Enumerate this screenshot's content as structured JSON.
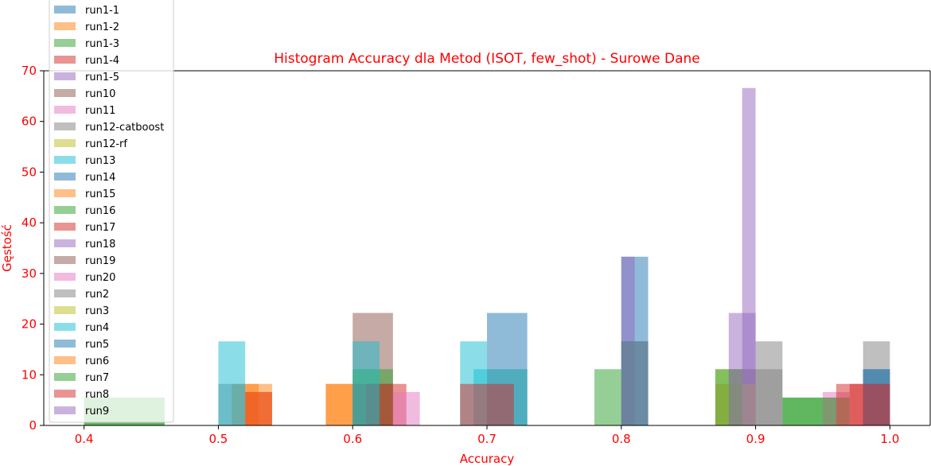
{
  "chart_data": {
    "type": "bar",
    "title": "Histogram Accuracy dla Metod (ISOT, few_shot) - Surowe Dane",
    "xlabel": "Accuracy",
    "ylabel": "Gęstość",
    "xlim": [
      0.37,
      1.03
    ],
    "ylim": [
      0,
      70
    ],
    "xticks": [
      "0.4",
      "0.5",
      "0.6",
      "0.7",
      "0.8",
      "0.9",
      "1.0"
    ],
    "yticks": [
      "0",
      "10",
      "20",
      "30",
      "40",
      "50",
      "60",
      "70"
    ],
    "grid": false,
    "legend_position": "upper-left",
    "bar_opacity": 0.5,
    "series": [
      {
        "name": "run1-1",
        "color": "#1f77b4",
        "bars": [
          {
            "x0": 0.7,
            "x1": 0.73,
            "y": 22.2
          },
          {
            "x0": 0.8,
            "x1": 0.82,
            "y": 33.3
          },
          {
            "x0": 0.98,
            "x1": 1.0,
            "y": 11.1
          }
        ]
      },
      {
        "name": "run1-2",
        "color": "#ff7f0e",
        "bars": [
          {
            "x0": 0.51,
            "x1": 0.53,
            "y": 8.2
          },
          {
            "x0": 0.58,
            "x1": 0.6,
            "y": 8.2
          },
          {
            "x0": 0.87,
            "x1": 0.88,
            "y": 8.2
          }
        ]
      },
      {
        "name": "run1-3",
        "color": "#2ca02c",
        "bars": [
          {
            "x0": 0.78,
            "x1": 0.8,
            "y": 11.1
          },
          {
            "x0": 0.92,
            "x1": 0.95,
            "y": 5.5
          }
        ]
      },
      {
        "name": "run1-4",
        "color": "#d62728",
        "bars": [
          {
            "x0": 0.52,
            "x1": 0.54,
            "y": 6.6
          },
          {
            "x0": 0.62,
            "x1": 0.64,
            "y": 8.2
          },
          {
            "x0": 0.97,
            "x1": 1.0,
            "y": 8.2
          }
        ]
      },
      {
        "name": "run1-5",
        "color": "#9467bd",
        "bars": [
          {
            "x0": 0.88,
            "x1": 0.9,
            "y": 22.2
          },
          {
            "x0": 0.8,
            "x1": 0.81,
            "y": 33.3
          }
        ]
      },
      {
        "name": "run10",
        "color": "#8c564b",
        "bars": [
          {
            "x0": 0.6,
            "x1": 0.63,
            "y": 22.2
          },
          {
            "x0": 0.95,
            "x1": 0.96,
            "y": 5.5
          }
        ]
      },
      {
        "name": "run11",
        "color": "#e377c2",
        "bars": [
          {
            "x0": 0.95,
            "x1": 0.97,
            "y": 6.6
          }
        ]
      },
      {
        "name": "run12-catboost",
        "color": "#7f7f7f",
        "bars": [
          {
            "x0": 0.5,
            "x1": 0.52,
            "y": 8.2
          },
          {
            "x0": 0.9,
            "x1": 0.92,
            "y": 16.6
          },
          {
            "x0": 0.98,
            "x1": 1.0,
            "y": 16.6
          }
        ]
      },
      {
        "name": "run12-rf",
        "color": "#bcbd22",
        "bars": [
          {
            "x0": 0.87,
            "x1": 0.89,
            "y": 11.1
          }
        ]
      },
      {
        "name": "run13",
        "color": "#17becf",
        "bars": [
          {
            "x0": 0.5,
            "x1": 0.52,
            "y": 16.6
          },
          {
            "x0": 0.68,
            "x1": 0.7,
            "y": 16.6
          }
        ]
      },
      {
        "name": "run14",
        "color": "#1f77b4",
        "bars": [
          {
            "x0": 0.8,
            "x1": 0.82,
            "y": 16.6
          }
        ]
      },
      {
        "name": "run15",
        "color": "#ff7f0e",
        "bars": [
          {
            "x0": 0.58,
            "x1": 0.6,
            "y": 8.2
          }
        ]
      },
      {
        "name": "run16",
        "color": "#2ca02c",
        "bars": [
          {
            "x0": 0.4,
            "x1": 0.46,
            "y": 5.5
          },
          {
            "x0": 0.6,
            "x1": 0.63,
            "y": 11.1
          },
          {
            "x0": 0.95,
            "x1": 0.97,
            "y": 5.5
          }
        ]
      },
      {
        "name": "run17",
        "color": "#d62728",
        "bars": [
          {
            "x0": 0.52,
            "x1": 0.54,
            "y": 6.6
          },
          {
            "x0": 0.61,
            "x1": 0.63,
            "y": 8.2
          }
        ]
      },
      {
        "name": "run18",
        "color": "#9467bd",
        "bars": [
          {
            "x0": 0.89,
            "x1": 0.9,
            "y": 66.6
          }
        ]
      },
      {
        "name": "run19",
        "color": "#8c564b",
        "bars": [
          {
            "x0": 0.6,
            "x1": 0.62,
            "y": 8.2
          }
        ]
      },
      {
        "name": "run20",
        "color": "#e377c2",
        "bars": [
          {
            "x0": 0.63,
            "x1": 0.65,
            "y": 6.6
          }
        ]
      },
      {
        "name": "run2",
        "color": "#7f7f7f",
        "bars": [
          {
            "x0": 0.7,
            "x1": 0.73,
            "y": 11.1
          },
          {
            "x0": 0.8,
            "x1": 0.82,
            "y": 16.6
          },
          {
            "x0": 0.89,
            "x1": 0.92,
            "y": 11.1
          }
        ]
      },
      {
        "name": "run3",
        "color": "#bcbd22",
        "bars": [
          {
            "x0": 0.88,
            "x1": 0.9,
            "y": 8.2
          }
        ]
      },
      {
        "name": "run4",
        "color": "#17becf",
        "bars": [
          {
            "x0": 0.6,
            "x1": 0.62,
            "y": 16.6
          },
          {
            "x0": 0.69,
            "x1": 0.73,
            "y": 11.1
          }
        ]
      },
      {
        "name": "run5",
        "color": "#1f77b4",
        "bars": [
          {
            "x0": 0.98,
            "x1": 1.0,
            "y": 11.1
          }
        ]
      },
      {
        "name": "run6",
        "color": "#ff7f0e",
        "bars": [
          {
            "x0": 0.52,
            "x1": 0.54,
            "y": 8.2
          }
        ]
      },
      {
        "name": "run7",
        "color": "#2ca02c",
        "bars": [
          {
            "x0": 0.4,
            "x1": 0.46,
            "y": 5.5
          },
          {
            "x0": 0.87,
            "x1": 0.89,
            "y": 11.1
          },
          {
            "x0": 0.92,
            "x1": 0.95,
            "y": 5.5
          }
        ]
      },
      {
        "name": "run8",
        "color": "#d62728",
        "bars": [
          {
            "x0": 0.68,
            "x1": 0.72,
            "y": 8.2
          },
          {
            "x0": 0.96,
            "x1": 1.0,
            "y": 8.2
          }
        ]
      },
      {
        "name": "run9",
        "color": "#9467bd",
        "bars": [
          {
            "x0": 0.88,
            "x1": 0.9,
            "y": 11.1
          }
        ]
      }
    ]
  }
}
